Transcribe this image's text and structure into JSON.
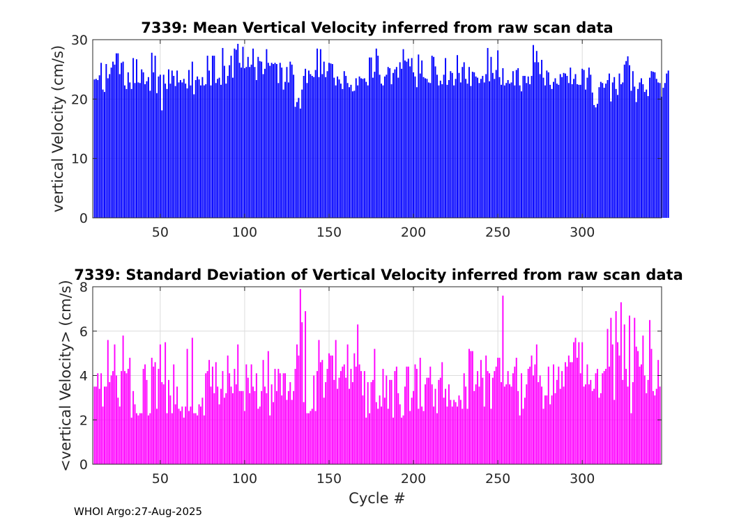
{
  "chart_data": [
    {
      "type": "bar",
      "title": "7339: Mean Vertical Velocity inferred from raw scan data",
      "xlabel": "",
      "ylabel": "vertical Velocity (cm/s)",
      "xlim": [
        10,
        347
      ],
      "ylim": [
        0,
        30
      ],
      "xticks": [
        50,
        100,
        150,
        200,
        250,
        300
      ],
      "yticks": [
        0,
        10,
        20,
        30
      ],
      "grid": true,
      "color": "#0000ff",
      "x_start": 11,
      "values": [
        23.3,
        23.4,
        23.2,
        24,
        26.1,
        21.6,
        21.2,
        25.9,
        23.5,
        24.2,
        25.3,
        26.3,
        25.8,
        27.7,
        27.7,
        24.2,
        26.1,
        26.3,
        22.3,
        21.7,
        24.5,
        22.8,
        21.7,
        26.9,
        22.7,
        26.7,
        22.8,
        22.7,
        25,
        24.5,
        22.5,
        23,
        23.7,
        21.4,
        27.8,
        24.5,
        27.3,
        21,
        23.8,
        24.1,
        18.1,
        24.1,
        22.6,
        21.7,
        25,
        22.6,
        24.8,
        23.9,
        22.2,
        24.8,
        22.8,
        23.2,
        22.8,
        23.4,
        22.6,
        21.8,
        24.9,
        22.3,
        26.3,
        20.8,
        23.2,
        23.8,
        23.3,
        22.3,
        23.7,
        22.3,
        22.5,
        27.3,
        24.8,
        22.3,
        27.3,
        27.3,
        22.7,
        23.4,
        23.6,
        22.4,
        28.6,
        25.6,
        22.6,
        23.9,
        25.7,
        27.3,
        23.6,
        28.5,
        28.3,
        29.3,
        26.1,
        25.3,
        28.8,
        25.2,
        25.4,
        27.1,
        25.4,
        25.8,
        28.5,
        25.4,
        23.2,
        27.1,
        26.4,
        26.3,
        24.2,
        25.1,
        28.4,
        26.1,
        25.6,
        26.1,
        25.9,
        26.1,
        25.9,
        22.7,
        26.1,
        25.3,
        21.6,
        22.9,
        25.4,
        22.8,
        26.3,
        25.8,
        24.1,
        18.7,
        19.5,
        20.2,
        18.4,
        21.6,
        23.9,
        25.1,
        22.7,
        24.8,
        24.2,
        23.9,
        23.7,
        24.9,
        28.5,
        23.7,
        28.4,
        24.2,
        26.3,
        23.7,
        24.7,
        26.1,
        26,
        25.9,
        23.6,
        22.3,
        23.8,
        23.3,
        22.6,
        21.7,
        24.7,
        23.9,
        22.7,
        22,
        22.4,
        21.3,
        21.4,
        23.5,
        22.3,
        23.8,
        23.5,
        23.4,
        23.5,
        22.9,
        22.3,
        27,
        27,
        23.6,
        24.6,
        28.5,
        27.3,
        24.1,
        22.6,
        22.3,
        23.8,
        24.1,
        25.4,
        25.2,
        22.5,
        24.4,
        25,
        25.4,
        23.6,
        26.2,
        25.1,
        28.4,
        26.5,
        26.3,
        26.8,
        25.5,
        26.9,
        24.5,
        23.8,
        22,
        27.5,
        24.3,
        26.5,
        23.7,
        23.5,
        23.4,
        22.8,
        22.7,
        27.3,
        27.1,
        25.5,
        24.1,
        22.3,
        23.1,
        22.5,
        24.1,
        26.9,
        22.4,
        23.2,
        24.7,
        24.4,
        22.3,
        23.4,
        27.4,
        24.4,
        22.8,
        25.4,
        26.2,
        23.4,
        22.6,
        25.4,
        22.2,
        24.6,
        24.5,
        23.8,
        23.6,
        22.7,
        23.4,
        23.9,
        22.8,
        24.2,
        28.6,
        23,
        27.1,
        24.4,
        23.4,
        24.9,
        28.2,
        23.7,
        22.4,
        25.2,
        22.3,
        22.7,
        23.2,
        22.6,
        22.8,
        24.7,
        22.3,
        24.9,
        25.2,
        22.3,
        21.3,
        23.9,
        23.9,
        22.7,
        23.8,
        22.5,
        23.9,
        29.1,
        26.2,
        28.1,
        26.2,
        24.2,
        26.6,
        23.6,
        22.3,
        24.8,
        24.5,
        22.4,
        21.7,
        22.9,
        23.5,
        22.6,
        22.4,
        24.2,
        23.7,
        24.4,
        24.3,
        23.9,
        22.7,
        25.3,
        22.5,
        23.4,
        24.2,
        22.5,
        22.4,
        22.4,
        25.1,
        24.9,
        21.6,
        23.6,
        25.3,
        24.1,
        21.1,
        19,
        18.6,
        19.2,
        22,
        22.9,
        22.7,
        21.9,
        22.6,
        23.2,
        24.3,
        19.6,
        22.8,
        23.7,
        21.7,
        20.7,
        24.3,
        22.5,
        22.8,
        25.8,
        26.4,
        27.2,
        25.7,
        21.4,
        24.7,
        22.1,
        19.5,
        21.7,
        22.8,
        23.5,
        22.5,
        21.2,
        21.6,
        20.5,
        23.6,
        24.7,
        24.6,
        24.5,
        23.4,
        22.8,
        22.7,
        20.4,
        21.9,
        22.7,
        24.3,
        24.8
      ]
    },
    {
      "type": "bar",
      "title": "7339: Standard Deviation of Vertical Velocity inferred from raw scan data",
      "xlabel": "Cycle #",
      "ylabel": "<vertical Velocity> (cm/s)",
      "xlim": [
        10,
        347
      ],
      "ylim": [
        0,
        8
      ],
      "xticks": [
        50,
        100,
        150,
        200,
        250,
        300
      ],
      "yticks": [
        0,
        2,
        4,
        6,
        8
      ],
      "grid": true,
      "color": "#ff00ff",
      "x_start": 11,
      "values": [
        3.5,
        3.5,
        4.1,
        3.4,
        4.1,
        2.6,
        3.5,
        3.5,
        5.6,
        3.7,
        4,
        4.2,
        5.4,
        4,
        3,
        2.6,
        4.2,
        5.8,
        4.2,
        4.1,
        4.3,
        4.8,
        2.1,
        3.3,
        2.7,
        2.3,
        2.2,
        2.3,
        2.3,
        4.3,
        4.5,
        3.8,
        2.2,
        2.3,
        4.8,
        4.4,
        4.6,
        2.5,
        4.3,
        5.4,
        3.7,
        3.6,
        5.5,
        2.3,
        3.8,
        3.1,
        2.3,
        4.5,
        2.7,
        3.5,
        2.5,
        2.4,
        2.6,
        2.1,
        2.6,
        5.2,
        2.4,
        2.6,
        5.7,
        2.3,
        2.3,
        2.2,
        2.7,
        2.6,
        3,
        2.2,
        4.1,
        4.2,
        4.7,
        3.5,
        4.4,
        3.2,
        4.6,
        3.5,
        2.7,
        3.4,
        4.2,
        3,
        3.2,
        4.9,
        4.1,
        3.5,
        3.2,
        4.3,
        3.6,
        5.4,
        3.3,
        3.3,
        3.3,
        2.4,
        4.5,
        3.9,
        3.2,
        4.5,
        3.5,
        3.3,
        4.1,
        2.5,
        2.6,
        3.3,
        4.7,
        3.5,
        3.2,
        5.1,
        2.2,
        3.6,
        2.8,
        4.3,
        3.3,
        4.3,
        4.1,
        3.1,
        4.1,
        4.1,
        2.9,
        3.3,
        3.7,
        2.9,
        3.3,
        4.3,
        5.4,
        4.9,
        7.9,
        6.4,
        2.8,
        6.9,
        2.3,
        2.3,
        2.4,
        2.5,
        4,
        2.4,
        4.2,
        5.6,
        4.6,
        4.7,
        3,
        3.7,
        4.3,
        5,
        4.9,
        4.9,
        3.8,
        5.6,
        3.4,
        3.9,
        4.2,
        4.4,
        4.5,
        3.9,
        5.4,
        3.4,
        4.3,
        3.7,
        5,
        4.4,
        6.3,
        4.5,
        4.2,
        3.1,
        4.2,
        2.1,
        3.7,
        2.3,
        3.7,
        3.8,
        5.2,
        2.8,
        2.5,
        3.1,
        2.6,
        4.3,
        3,
        4,
        2.5,
        3.8,
        3.8,
        2.1,
        4.2,
        4.4,
        3.2,
        2.7,
        2.1,
        2.2,
        3.5,
        4.4,
        4.4,
        2.4,
        3,
        3.3,
        4.5,
        4.3,
        2.5,
        4.8,
        2.6,
        2.4,
        3.6,
        3.9,
        3.9,
        4.4,
        3.6,
        2.6,
        3.4,
        2.3,
        3.8,
        3.9,
        4.6,
        3,
        3.4,
        2.6,
        3.6,
        2.9,
        2.6,
        2.9,
        2.8,
        2.6,
        3.1,
        2.9,
        2.5,
        4.1,
        3.5,
        2.5,
        5.2,
        5.1,
        5.1,
        3.3,
        3.6,
        4.2,
        3.5,
        4.7,
        3.9,
        2.6,
        4.9,
        4.2,
        4.1,
        2.5,
        3.9,
        4.2,
        4.4,
        4.8,
        4.8,
        3.7,
        7.6,
        3.5,
        3.6,
        4.2,
        3.6,
        3.5,
        4.1,
        4.4,
        4.8,
        3.3,
        2.2,
        4.1,
        2.5,
        3,
        3.6,
        4.3,
        4.4,
        4.9,
        4,
        4.5,
        5.4,
        3.7,
        4,
        3.5,
        2.5,
        3.1,
        3.1,
        4.4,
        2.7,
        3.1,
        4.5,
        3.2,
        3.8,
        4.4,
        3.4,
        4.2,
        3.5,
        4.6,
        4.4,
        4.9,
        4.6,
        4.6,
        5.5,
        5.7,
        4.8,
        5.5,
        4.1,
        5.5,
        3.5,
        3.6,
        4.5,
        3.6,
        3.8,
        3.3,
        3.4,
        4.1,
        4.3,
        3,
        3.2,
        4.1,
        4.2,
        4.3,
        6.1,
        4.4,
        6.6,
        5.4,
        2.9,
        6.9,
        5.5,
        4.9,
        7.3,
        3.8,
        6.3,
        4.3,
        3.5,
        6.7,
        2.3,
        3.7,
        6.6,
        5.3,
        5.1,
        4.4,
        4.5,
        5.8,
        4,
        3.2,
        3.8,
        6.5,
        5.2,
        3.3,
        3.1,
        3.4,
        4.7,
        3.5
      ]
    }
  ],
  "footer": "WHOI Argo:27-Aug-2025"
}
